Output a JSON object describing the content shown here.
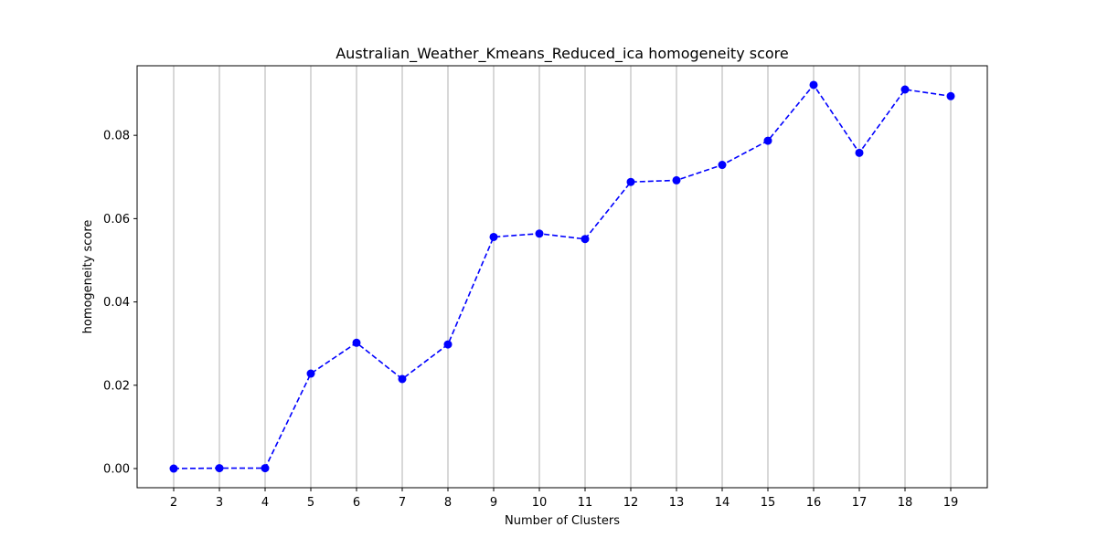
{
  "chart_data": {
    "type": "line",
    "title": "Australian_Weather_Kmeans_Reduced_ica homogeneity score",
    "xlabel": "Number of Clusters",
    "ylabel": "homogeneity score",
    "x": [
      2,
      3,
      4,
      5,
      6,
      7,
      8,
      9,
      10,
      11,
      12,
      13,
      14,
      15,
      16,
      17,
      18,
      19
    ],
    "series": [
      {
        "values": [
          0.0,
          0.0001,
          0.0001,
          0.0228,
          0.0302,
          0.0215,
          0.0298,
          0.0556,
          0.0564,
          0.0551,
          0.0688,
          0.0692,
          0.0729,
          0.0787,
          0.0921,
          0.0758,
          0.091,
          0.0894
        ],
        "color": "#0000ff",
        "line_style": "dashed",
        "marker": "circle"
      }
    ],
    "xlim": [
      1.2,
      19.8
    ],
    "ylim": [
      -0.0046,
      0.0967
    ],
    "x_ticks": [
      "2",
      "3",
      "4",
      "5",
      "6",
      "7",
      "8",
      "9",
      "10",
      "11",
      "12",
      "13",
      "14",
      "15",
      "16",
      "17",
      "18",
      "19"
    ],
    "y_ticks": [
      "0.00",
      "0.02",
      "0.04",
      "0.06",
      "0.08"
    ],
    "y_tick_values": [
      0.0,
      0.02,
      0.04,
      0.06,
      0.08
    ],
    "grid": "vertical",
    "grid_color": "#b0b0b0"
  }
}
